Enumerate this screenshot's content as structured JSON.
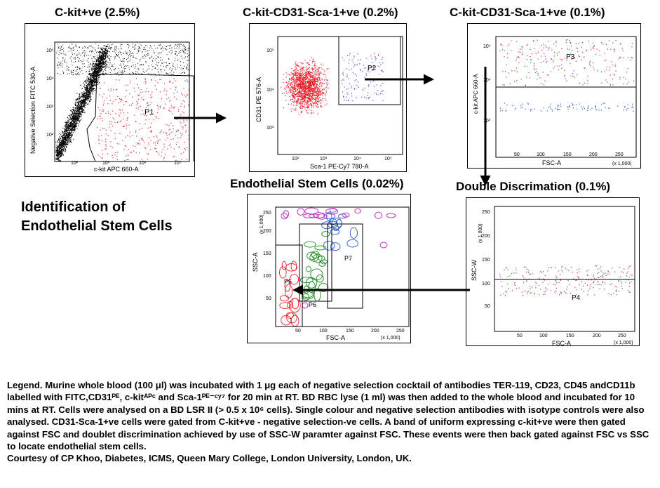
{
  "titles": {
    "p1": "C-kit+ve (2.5%)",
    "p2": "C-kit-CD31-Sca-1+ve (0.2%)",
    "p3": "C-kit-CD31-Sca-1+ve (0.1%)",
    "p4": "Double Discrimation (0.1%)",
    "p5": "Endothelial Stem Cells (0.02%)"
  },
  "heading": [
    "Identification of",
    "Endothelial Stem Cells"
  ],
  "plots": {
    "p1": {
      "xlabel": "c-kit APC 660-A",
      "ylabel": "Negative Selection FITC 530-A",
      "gate": "P1",
      "xticks": [
        "10²",
        "10³",
        "10⁴",
        "10⁵"
      ],
      "yticks": [
        "10²",
        "10³",
        "10⁴",
        "10⁵"
      ]
    },
    "p2": {
      "xlabel": "Sca-1 PE-Cy7 780-A",
      "ylabel": "CD31 PE 576-A",
      "gate": "P2",
      "xticks": [
        "10²",
        "10³",
        "10⁴",
        "10⁵"
      ],
      "yticks": [
        "10³",
        "10⁴",
        "10⁵"
      ]
    },
    "p3": {
      "xlabel": "FSC-A",
      "ylabel": "c-kit APC 660-A",
      "gate": "P3",
      "xunit": "(x 1,000)",
      "xticks": [
        "50",
        "100",
        "150",
        "200",
        "250"
      ],
      "yticks": [
        "10³",
        "10⁴",
        "10⁵"
      ]
    },
    "p4": {
      "xlabel": "FSC-A",
      "ylabel": "SSC-W",
      "gate": "P4",
      "xunit": "(x 1,000)",
      "yunit": "(x 1,000)",
      "xticks": [
        "50",
        "100",
        "150",
        "200",
        "250"
      ],
      "yticks": [
        "50",
        "100",
        "150",
        "200",
        "250"
      ]
    },
    "p5": {
      "xlabel": "FSC-A",
      "ylabel": "SSC-A",
      "xunit": "(x 1,000)",
      "yunit": "(x 1,000)",
      "gates": [
        "P5",
        "P6",
        "P7"
      ],
      "xticks": [
        "50",
        "100",
        "150",
        "200",
        "250"
      ],
      "yticks": [
        "50",
        "100",
        "150",
        "200",
        "250"
      ]
    }
  },
  "colors": {
    "red": "#e8202a",
    "green": "#1a8a1a",
    "blue": "#2a5ad8",
    "magenta": "#c020c0",
    "black": "#000000"
  },
  "legend": {
    "text": "Legend. Murine whole blood (100 μl) was incubated with 1 μg each of negative selection cocktail of antibodies TER-119, CD23, CD45 andCD11b labelled with FITC,CD31ᴾᴱ, c-kitᴬᴾᶜ and Sca-1ᴾᴱ⁻ᶜʸ⁷ for 20 min at RT. BD RBC lyse (1 ml) was then added to the whole blood and incubated for 10 mins at RT. Cells were analysed on a BD LSR II (> 0.5 x 10⁶ cells). Single colour and negative selection antibodies with isotype controls were also analysed. CD31-Sca-1+ve cells were gated from C-kit+ve - negative selection-ve cells. A band of uniform expressing c-kit+ve were then gated against FSC and doublet discrimination achieved by use of SSC-W paramter against FSC. These events were then back gated against FSC vs SSC to locate endothelial stem cells.",
    "credit": "Courtesy of CP Khoo, Diabetes, ICMS, Queen Mary College, London University, London, UK."
  }
}
